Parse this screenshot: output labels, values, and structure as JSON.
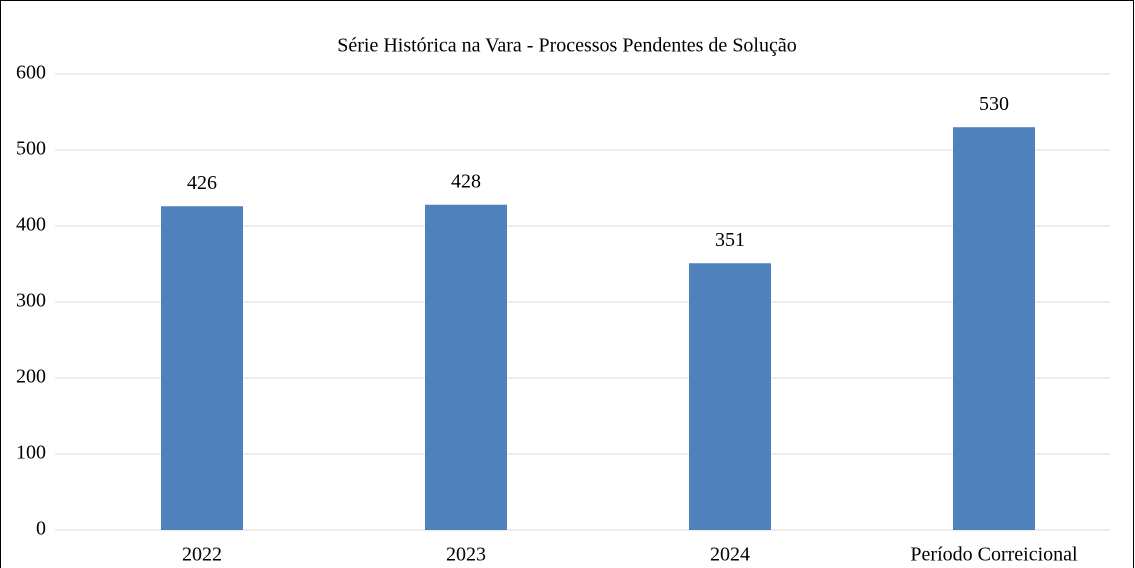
{
  "chart_data": {
    "type": "bar",
    "title": "Série Histórica na Vara - Processos Pendentes de Solução",
    "categories": [
      "2022",
      "2023",
      "2024",
      "Período Correicional"
    ],
    "values": [
      426,
      428,
      351,
      530
    ],
    "color": "#4f81bd",
    "ylim": [
      0,
      600
    ],
    "yticks": [
      0,
      100,
      200,
      300,
      400,
      500,
      600
    ],
    "grid": true
  }
}
